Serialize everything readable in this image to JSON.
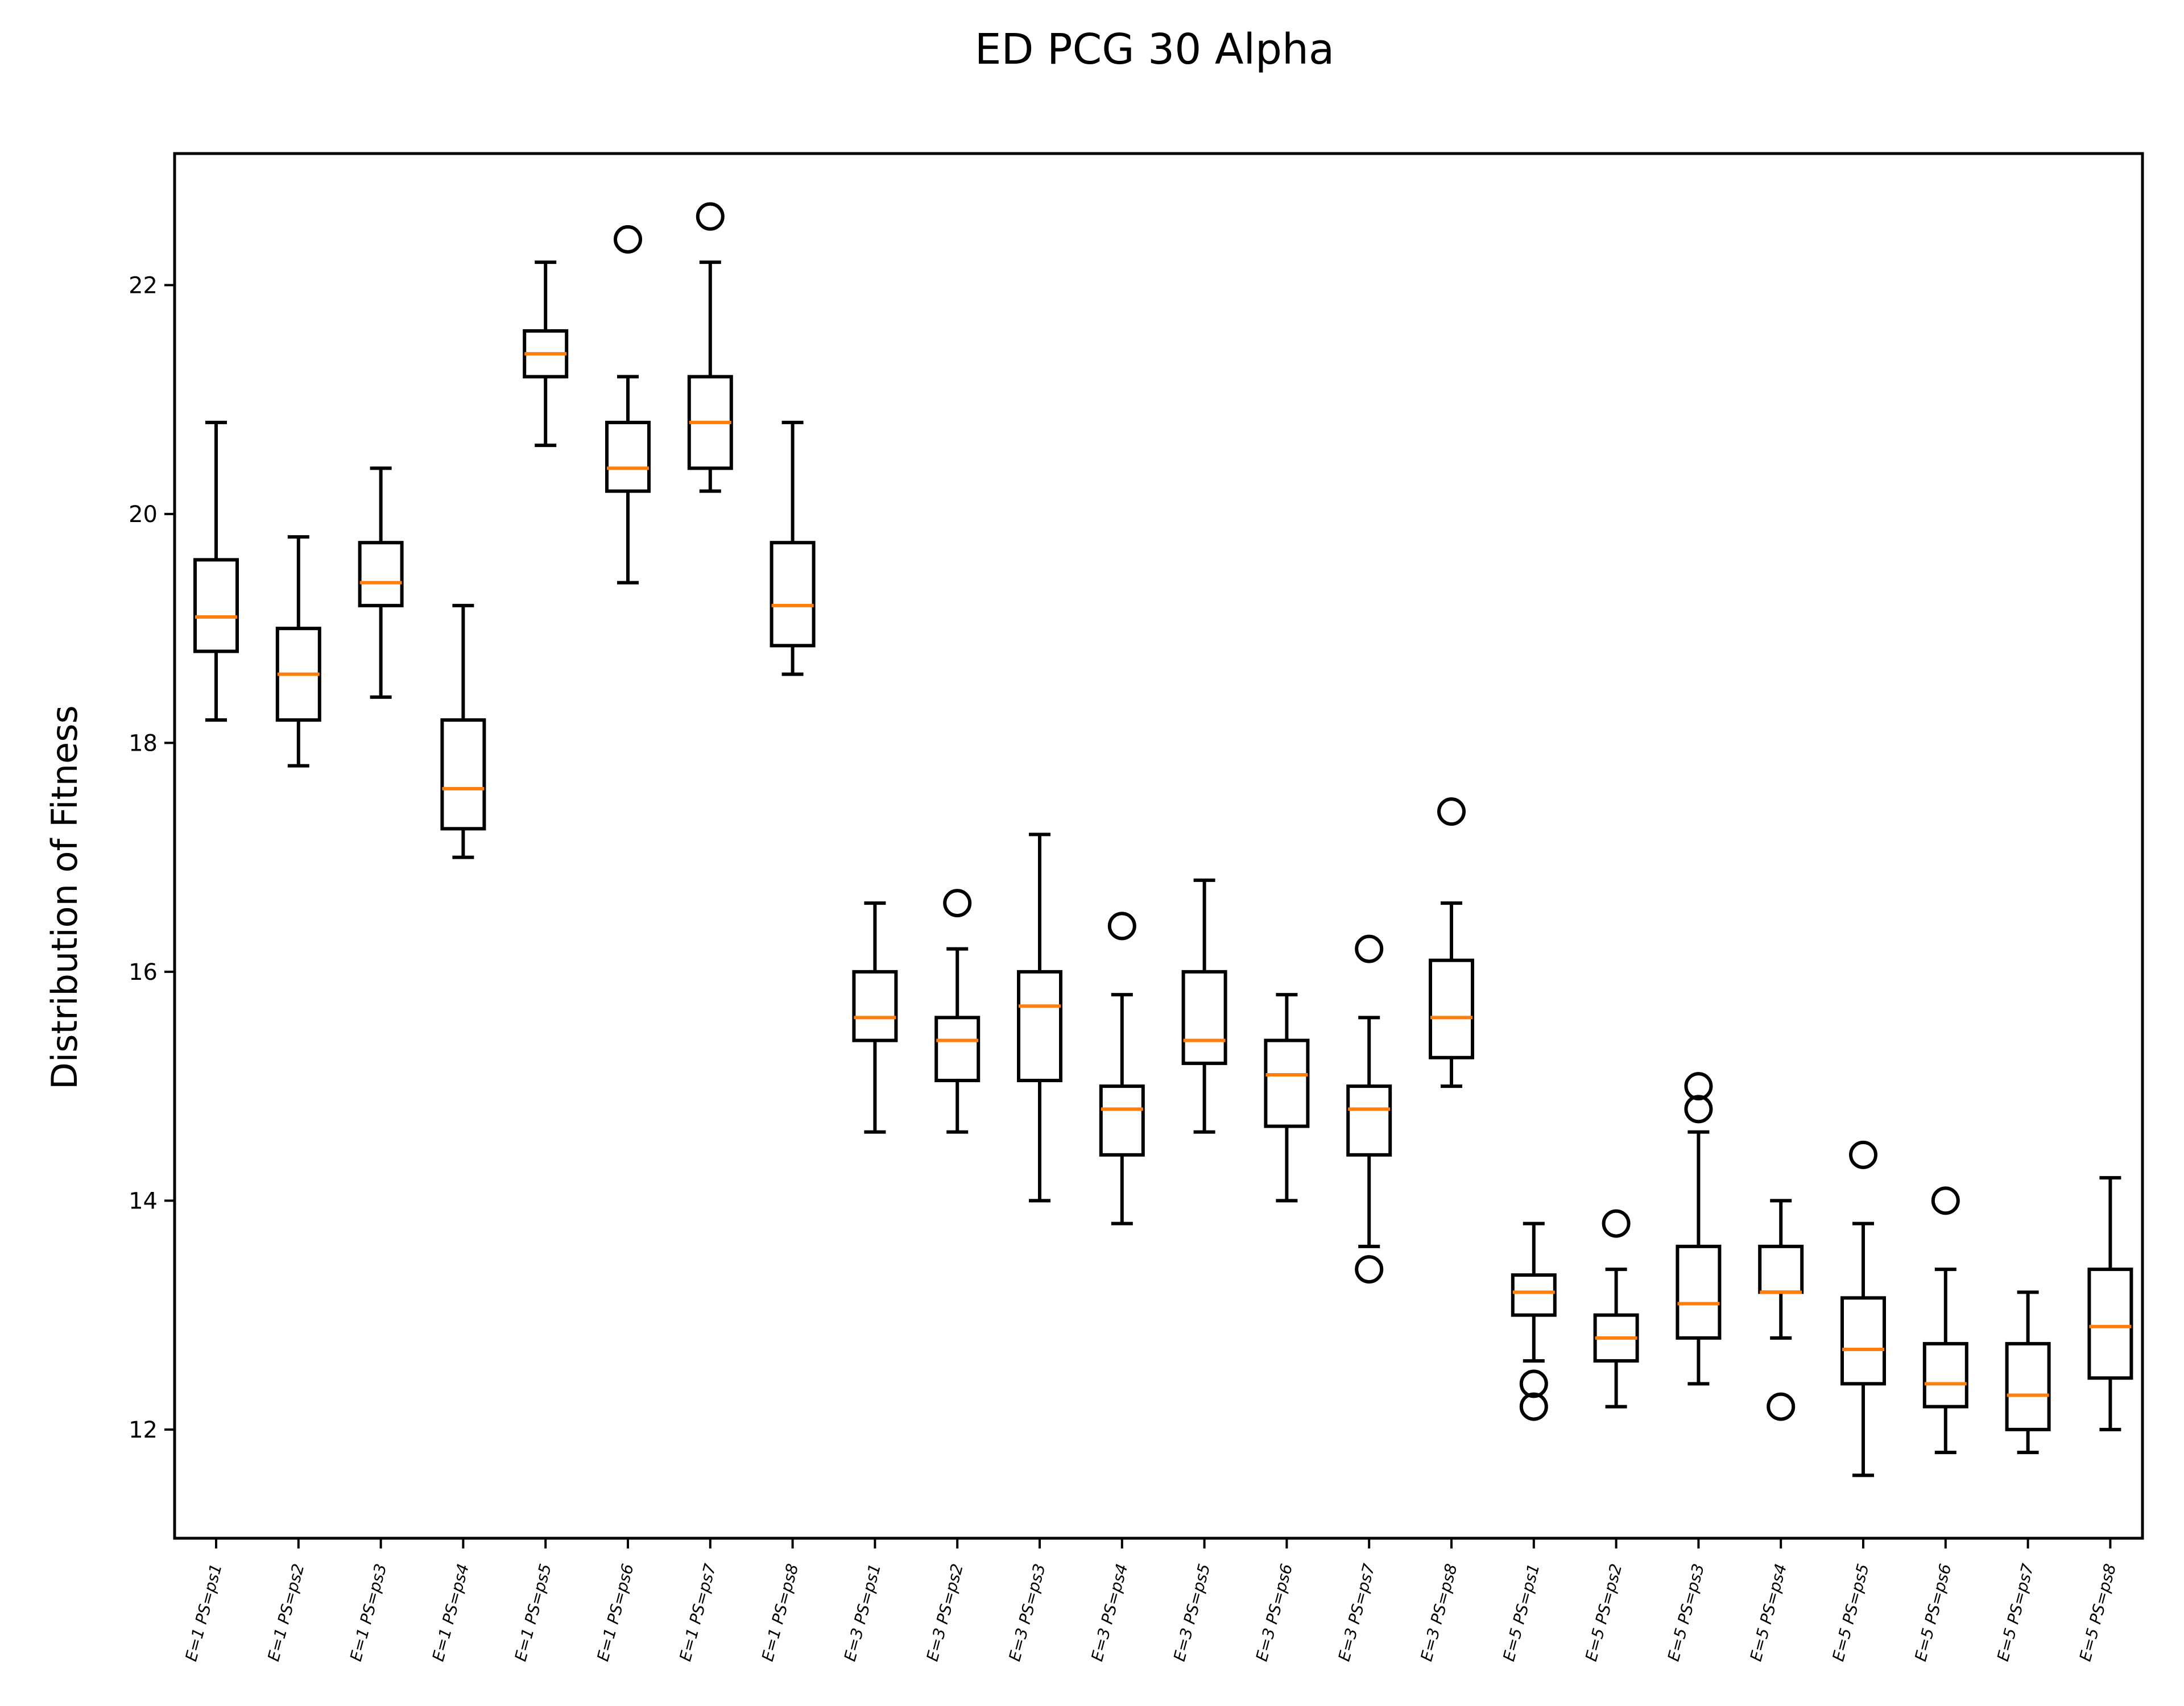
{
  "chart_data": {
    "type": "boxplot",
    "title": "ED PCG 30 Alpha",
    "xlabel": "",
    "ylabel": "Distribution of Fitness",
    "ylim": [
      11.05,
      23.15
    ],
    "yticks": [
      12,
      14,
      16,
      18,
      20,
      22
    ],
    "grid": false,
    "colors": {
      "box": "#000000",
      "median": "#ff7f0e",
      "outlier": "#000000"
    },
    "categories": [
      "E=1 PS=ps1",
      "E=1 PS=ps2",
      "E=1 PS=ps3",
      "E=1 PS=ps4",
      "E=1 PS=ps5",
      "E=1 PS=ps6",
      "E=1 PS=ps7",
      "E=1 PS=ps8",
      "E=3 PS=ps1",
      "E=3 PS=ps2",
      "E=3 PS=ps3",
      "E=3 PS=ps4",
      "E=3 PS=ps5",
      "E=3 PS=ps6",
      "E=3 PS=ps7",
      "E=3 PS=ps8",
      "E=5 PS=ps1",
      "E=5 PS=ps2",
      "E=5 PS=ps3",
      "E=5 PS=ps4",
      "E=5 PS=ps5",
      "E=5 PS=ps6",
      "E=5 PS=ps7",
      "E=5 PS=ps8"
    ],
    "boxes": [
      {
        "whislo": 18.2,
        "q1": 18.8,
        "med": 19.1,
        "q3": 19.6,
        "whishi": 20.8,
        "fliers": []
      },
      {
        "whislo": 17.8,
        "q1": 18.2,
        "med": 18.6,
        "q3": 19.0,
        "whishi": 19.8,
        "fliers": []
      },
      {
        "whislo": 18.4,
        "q1": 19.2,
        "med": 19.4,
        "q3": 19.75,
        "whishi": 20.4,
        "fliers": []
      },
      {
        "whislo": 17.0,
        "q1": 17.25,
        "med": 17.6,
        "q3": 18.2,
        "whishi": 19.2,
        "fliers": []
      },
      {
        "whislo": 20.6,
        "q1": 21.2,
        "med": 21.4,
        "q3": 21.6,
        "whishi": 22.2,
        "fliers": []
      },
      {
        "whislo": 19.4,
        "q1": 20.2,
        "med": 20.4,
        "q3": 20.8,
        "whishi": 21.2,
        "fliers": [
          22.4
        ]
      },
      {
        "whislo": 20.2,
        "q1": 20.4,
        "med": 20.8,
        "q3": 21.2,
        "whishi": 22.2,
        "fliers": [
          22.6
        ]
      },
      {
        "whislo": 18.6,
        "q1": 18.85,
        "med": 19.2,
        "q3": 19.75,
        "whishi": 20.8,
        "fliers": []
      },
      {
        "whislo": 14.6,
        "q1": 15.4,
        "med": 15.6,
        "q3": 16.0,
        "whishi": 16.6,
        "fliers": []
      },
      {
        "whislo": 14.6,
        "q1": 15.05,
        "med": 15.4,
        "q3": 15.6,
        "whishi": 16.2,
        "fliers": [
          16.6
        ]
      },
      {
        "whislo": 14.0,
        "q1": 15.05,
        "med": 15.7,
        "q3": 16.0,
        "whishi": 17.2,
        "fliers": []
      },
      {
        "whislo": 13.8,
        "q1": 14.4,
        "med": 14.8,
        "q3": 15.0,
        "whishi": 15.8,
        "fliers": [
          16.4
        ]
      },
      {
        "whislo": 14.6,
        "q1": 15.2,
        "med": 15.4,
        "q3": 16.0,
        "whishi": 16.8,
        "fliers": []
      },
      {
        "whislo": 14.0,
        "q1": 14.65,
        "med": 15.1,
        "q3": 15.4,
        "whishi": 15.8,
        "fliers": []
      },
      {
        "whislo": 13.6,
        "q1": 14.4,
        "med": 14.8,
        "q3": 15.0,
        "whishi": 15.6,
        "fliers": [
          16.2,
          13.4
        ]
      },
      {
        "whislo": 15.0,
        "q1": 15.25,
        "med": 15.6,
        "q3": 16.1,
        "whishi": 16.6,
        "fliers": [
          17.4
        ]
      },
      {
        "whislo": 12.6,
        "q1": 13.0,
        "med": 13.2,
        "q3": 13.35,
        "whishi": 13.8,
        "fliers": [
          12.4,
          12.2
        ]
      },
      {
        "whislo": 12.2,
        "q1": 12.6,
        "med": 12.8,
        "q3": 13.0,
        "whishi": 13.4,
        "fliers": [
          13.8
        ]
      },
      {
        "whislo": 12.4,
        "q1": 12.8,
        "med": 13.1,
        "q3": 13.6,
        "whishi": 14.6,
        "fliers": [
          15.0,
          14.8
        ]
      },
      {
        "whislo": 12.8,
        "q1": 13.2,
        "med": 13.2,
        "q3": 13.6,
        "whishi": 14.0,
        "fliers": [
          12.2
        ]
      },
      {
        "whislo": 11.6,
        "q1": 12.4,
        "med": 12.7,
        "q3": 13.15,
        "whishi": 13.8,
        "fliers": [
          14.4
        ]
      },
      {
        "whislo": 11.8,
        "q1": 12.2,
        "med": 12.4,
        "q3": 12.75,
        "whishi": 13.4,
        "fliers": [
          14.0
        ]
      },
      {
        "whislo": 11.8,
        "q1": 12.0,
        "med": 12.3,
        "q3": 12.75,
        "whishi": 13.2,
        "fliers": []
      },
      {
        "whislo": 12.0,
        "q1": 12.45,
        "med": 12.9,
        "q3": 13.4,
        "whishi": 14.2,
        "fliers": []
      }
    ]
  }
}
